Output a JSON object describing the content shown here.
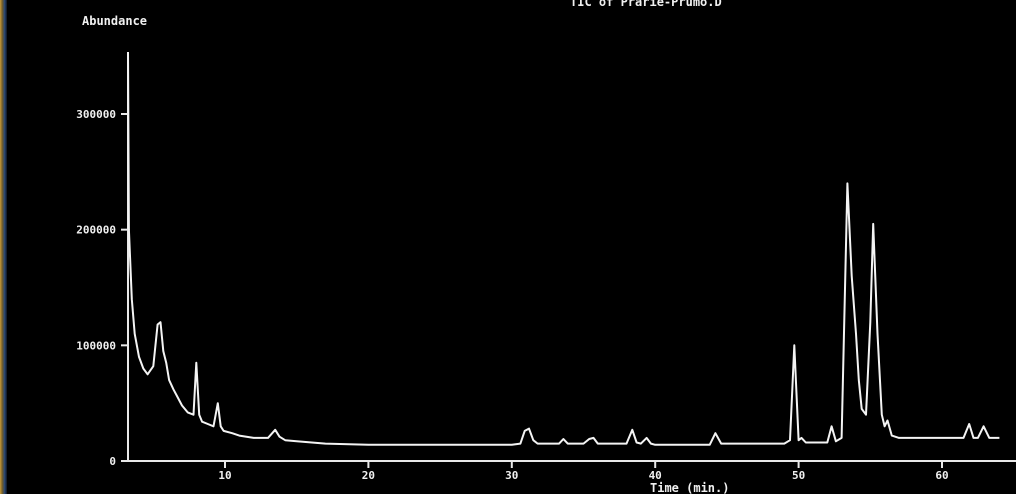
{
  "window": {
    "edge_gradient": [
      "#c79a3a",
      "#2a4a78"
    ]
  },
  "chart_data": {
    "type": "line",
    "title": "TIC of Prarie-Prumo.D",
    "ylabel": "Abundance",
    "xlabel": "Time (min.)",
    "colors": {
      "background": "#000000",
      "trace": "#f4f4f4",
      "axes": "#e8e8e8"
    },
    "xlim": [
      2,
      64
    ],
    "ylim": [
      0,
      350000
    ],
    "x_ticks": [
      10,
      20,
      30,
      40,
      50,
      60
    ],
    "x_tick_labels": [
      "10",
      "20",
      "30",
      "40",
      "50",
      "60"
    ],
    "y_ticks": [
      0,
      100000,
      200000,
      300000
    ],
    "y_tick_labels": [
      "0",
      "100000",
      "200000",
      "300000"
    ],
    "grid": false,
    "legend": "none",
    "series": [
      {
        "x": [
          3.0,
          3.3,
          3.5,
          3.7,
          4.0,
          4.3,
          4.6,
          5.0,
          5.3,
          5.5,
          5.7,
          5.9,
          6.1,
          6.4,
          6.7,
          7.0,
          7.4,
          7.8,
          8.0,
          8.2,
          8.4,
          8.8,
          9.2,
          9.5,
          9.7,
          9.9,
          10.5,
          11.0,
          12.0,
          13.0,
          13.5,
          13.8,
          14.2,
          15,
          17,
          20,
          25,
          30,
          30.6,
          30.9,
          31.2,
          31.5,
          31.8,
          32.5,
          33.3,
          33.6,
          33.9,
          35.0,
          35.4,
          35.7,
          36.0,
          38.0,
          38.4,
          38.7,
          39.0,
          39.4,
          39.7,
          40.0,
          42,
          43.8,
          44.2,
          44.6,
          46,
          48,
          49.0,
          49.4,
          49.7,
          50.0,
          50.2,
          50.5,
          52.0,
          52.3,
          52.6,
          53.0,
          53.4,
          53.7,
          54.0,
          54.2,
          54.4,
          54.7,
          55.0,
          55.2,
          55.5,
          55.8,
          56.0,
          56.2,
          56.5,
          57.0,
          58,
          60,
          61.5,
          61.9,
          62.2,
          62.5,
          62.9,
          63.3,
          63.6,
          64.0
        ],
        "y": [
          360000,
          200000,
          140000,
          110000,
          90000,
          80000,
          75000,
          82000,
          118000,
          120000,
          95000,
          85000,
          70000,
          62000,
          55000,
          48000,
          42000,
          40000,
          85000,
          40000,
          34000,
          32000,
          30000,
          50000,
          30000,
          26000,
          24000,
          22000,
          20000,
          20000,
          27000,
          21000,
          18000,
          17000,
          15000,
          14000,
          14000,
          14000,
          15000,
          26000,
          28000,
          18000,
          15000,
          15000,
          15000,
          19000,
          15000,
          15000,
          19000,
          20000,
          15000,
          15000,
          27000,
          16000,
          15000,
          20000,
          15000,
          14000,
          14000,
          14000,
          24000,
          15000,
          15000,
          15000,
          15000,
          18000,
          100000,
          18000,
          20000,
          16000,
          16000,
          30000,
          17000,
          20000,
          240000,
          160000,
          110000,
          70000,
          45000,
          40000,
          120000,
          205000,
          110000,
          40000,
          30000,
          35000,
          22000,
          20000,
          20000,
          20000,
          20000,
          32000,
          20000,
          20000,
          30000,
          20000,
          20000,
          20000
        ]
      }
    ]
  }
}
